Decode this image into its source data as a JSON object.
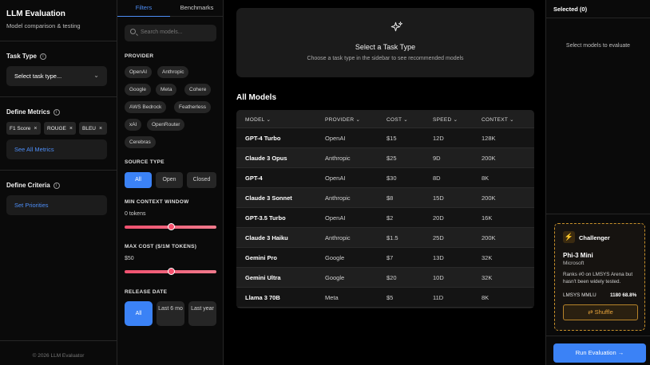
{
  "app": {
    "title": "LLM Evaluation",
    "subtitle": "Model comparison & testing",
    "footer": "© 2026 LLM Evaluator"
  },
  "sidebar": {
    "task_type_label": "Task Type",
    "task_type_placeholder": "Select task type...",
    "metrics_label": "Define Metrics",
    "metric_chips": [
      "F1 Score",
      "ROUGE",
      "BLEU"
    ],
    "see_all_metrics": "See All Metrics",
    "criteria_label": "Define Criteria",
    "set_priorities": "Set Priorities"
  },
  "filters": {
    "tabs": [
      "Filters",
      "Benchmarks"
    ],
    "active_tab": "Filters",
    "search_placeholder": "Search models...",
    "provider_label": "PROVIDER",
    "providers": [
      "OpenAI",
      "Anthropic",
      "Google",
      "Meta",
      "Cohere",
      "AWS Bedrock",
      "Featherless",
      "xAI",
      "OpenRouter",
      "Cerebras"
    ],
    "source_type_label": "SOURCE TYPE",
    "source_types": [
      "All",
      "Open",
      "Closed"
    ],
    "source_selected": "All",
    "min_context_label": "MIN CONTEXT WINDOW",
    "min_context_value": "0 tokens",
    "min_context_level": 0.5,
    "max_cost_label": "MAX COST ($/1M TOKENS)",
    "max_cost_value": "$50",
    "max_cost_level": 0.5,
    "release_label": "RELEASE DATE",
    "release_options": [
      "All",
      "Last 6 mo",
      "Last year"
    ],
    "release_selected": "All"
  },
  "task_card": {
    "title": "Select a Task Type",
    "description": "Choose a task type in the sidebar to see recommended models",
    "icon": "sparkle-icon"
  },
  "models": {
    "heading": "All Models",
    "columns": [
      "MODEL",
      "PROVIDER",
      "COST",
      "SPEED",
      "CONTEXT"
    ],
    "rows": [
      [
        "GPT-4 Turbo",
        "OpenAI",
        "$15",
        "12D",
        "128K"
      ],
      [
        "Claude 3 Opus",
        "Anthropic",
        "$25",
        "9D",
        "200K"
      ],
      [
        "GPT-4",
        "OpenAI",
        "$30",
        "8D",
        "8K"
      ],
      [
        "Claude 3 Sonnet",
        "Anthropic",
        "$8",
        "15D",
        "200K"
      ],
      [
        "GPT-3.5 Turbo",
        "OpenAI",
        "$2",
        "20D",
        "16K"
      ],
      [
        "Claude 3 Haiku",
        "Anthropic",
        "$1.5",
        "25D",
        "200K"
      ],
      [
        "Gemini Pro",
        "Google",
        "$7",
        "13D",
        "32K"
      ],
      [
        "Gemini Ultra",
        "Google",
        "$20",
        "10D",
        "32K"
      ],
      [
        "Llama 3 70B",
        "Meta",
        "$5",
        "11D",
        "8K"
      ]
    ]
  },
  "selected": {
    "heading": "Selected (0)",
    "empty": "Select models to evaluate"
  },
  "challenger": {
    "label": "Challenger",
    "model": "Phi-3 Mini",
    "provider": "Microsoft",
    "description": "Ranks #0 on LMSYS Arena but hasn't been widely tested.",
    "metric": "LMSYS MMLU",
    "score": "1180 68.8%",
    "shuffle": "Shuffle"
  },
  "run_button": "Run Evaluation →",
  "colors": {
    "accent": "#3b82f6",
    "challenger": "#e7a33b",
    "slider": "#f0516f"
  }
}
